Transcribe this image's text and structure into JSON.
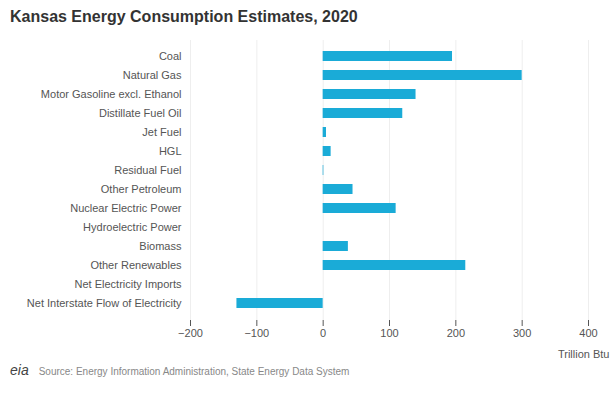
{
  "chart_data": {
    "type": "bar",
    "orientation": "horizontal",
    "title": "Kansas Energy Consumption Estimates, 2020",
    "categories": [
      "Net Interstate Flow of Electricity",
      "Net Electricity Imports",
      "Other Renewables",
      "Biomass",
      "Hydroelectric Power",
      "Nuclear Electric Power",
      "Other Petroleum",
      "Residual Fuel",
      "HGL",
      "Jet Fuel",
      "Distillate Fuel Oil",
      "Motor Gasoline excl. Ethanol",
      "Natural Gas",
      "Coal"
    ],
    "values": [
      -130,
      0,
      215,
      38,
      0,
      110,
      45,
      1,
      12,
      5,
      120,
      140,
      300,
      195
    ],
    "color": "#1aabd7",
    "xlim": [
      -200,
      400
    ],
    "xticks": [
      -200,
      -100,
      0,
      100,
      200,
      300,
      400
    ],
    "xlabel": "Trillion Btu",
    "grid": true,
    "annotations": [
      "eia",
      "Source: Energy Information Administration, State Energy Data System"
    ]
  }
}
